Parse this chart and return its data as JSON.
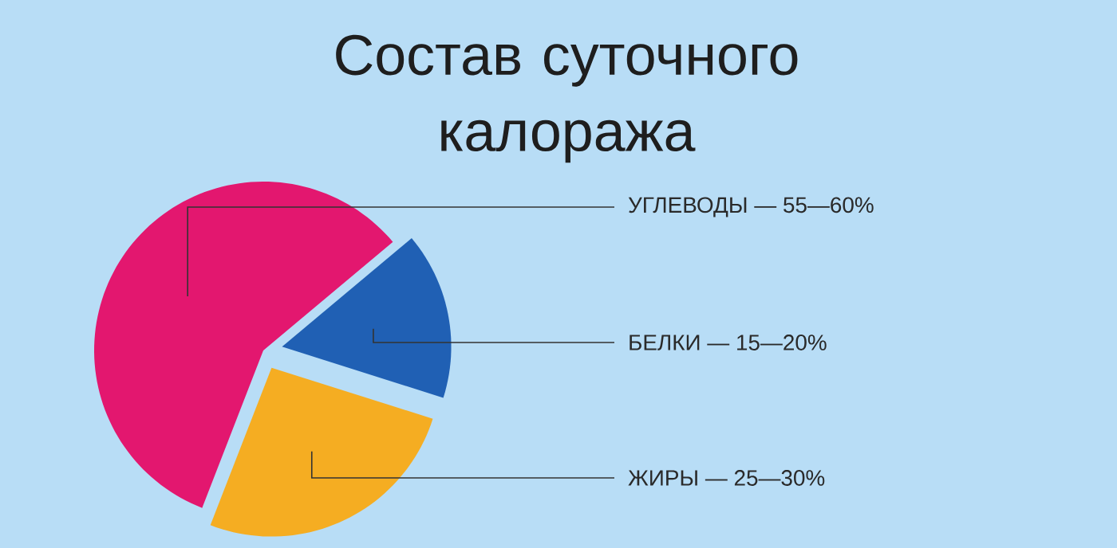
{
  "chart_data": {
    "type": "pie",
    "title": "Состав  суточного калоража",
    "categories": [
      "УГЛЕВОДЫ — 55—60%",
      "БЕЛКИ — 15—20%",
      "ЖИРЫ — 25—30%"
    ],
    "values": [
      58,
      16,
      26
    ],
    "colors": [
      "#e3176f",
      "#2060b4",
      "#f5ad22"
    ]
  }
}
